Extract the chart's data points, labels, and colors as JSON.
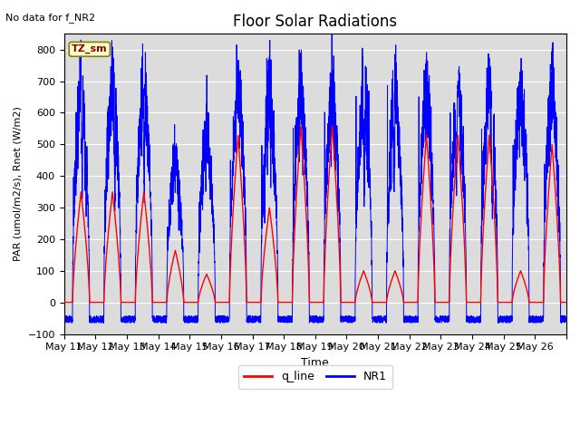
{
  "title": "Floor Solar Radiations",
  "xlabel": "Time",
  "ylabel": "PAR (umol/m2/s), Rnet (W/m2)",
  "ylim": [
    -100,
    850
  ],
  "yticks": [
    -100,
    0,
    100,
    200,
    300,
    400,
    500,
    600,
    700,
    800
  ],
  "note": "No data for f_NR2",
  "legend_labels": [
    "q_line",
    "NR1"
  ],
  "legend_colors": [
    "red",
    "blue"
  ],
  "tz_label": "TZ_sm",
  "num_days": 16,
  "x_tick_labels": [
    "May 11",
    "May 12",
    "May 13",
    "May 14",
    "May 15",
    "May 16",
    "May 17",
    "May 18",
    "May 19",
    "May 20",
    "May 21",
    "May 22",
    "May 23",
    "May 24",
    "May 25",
    "May 26"
  ],
  "plot_bg_color": "#dcdcdc",
  "fig_bg_color": "#ffffff",
  "red_peaks": [
    350,
    350,
    350,
    165,
    90,
    530,
    300,
    560,
    560,
    100,
    100,
    530,
    530,
    530,
    100,
    500
  ],
  "blue_peaks": [
    705,
    728,
    725,
    480,
    555,
    700,
    695,
    700,
    700,
    700,
    690,
    705,
    705,
    705,
    705,
    690
  ]
}
